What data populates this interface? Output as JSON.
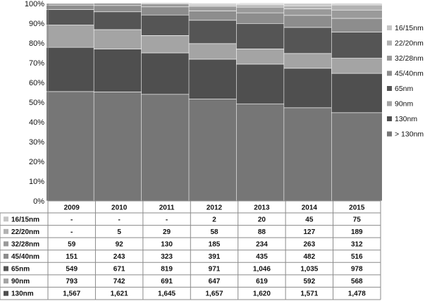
{
  "chart_data": {
    "type": "bar",
    "stacked": true,
    "percent_stacked": true,
    "categories": [
      "2009",
      "2010",
      "2011",
      "2012",
      "2013",
      "2014",
      "2015"
    ],
    "yticks": [
      "0%",
      "10%",
      "20%",
      "30%",
      "40%",
      "50%",
      "60%",
      "70%",
      "80%",
      "90%",
      "100%"
    ],
    "ylim": [
      0,
      100
    ],
    "legend_position": "right",
    "series": [
      {
        "name": "> 130nm",
        "color": "#767676",
        "values": [
          55.4,
          55.2,
          54.0,
          51.6,
          49.2,
          47.2,
          44.7
        ]
      },
      {
        "name": "130nm",
        "color": "#4f4f4f",
        "values": [
          22.4,
          21.7,
          21.0,
          20.2,
          20.1,
          20.0,
          19.9
        ]
      },
      {
        "name": "90nm",
        "color": "#a4a4a4",
        "values": [
          11.3,
          9.9,
          8.8,
          7.9,
          7.7,
          7.5,
          7.7
        ]
      },
      {
        "name": "65nm",
        "color": "#555555",
        "values": [
          7.9,
          9.0,
          10.4,
          11.8,
          12.9,
          13.2,
          13.2
        ]
      },
      {
        "name": "45/40nm",
        "color": "#8d8d8d",
        "values": [
          2.2,
          3.2,
          4.1,
          4.8,
          5.4,
          6.1,
          7.0
        ]
      },
      {
        "name": "32/28nm",
        "color": "#9a9a9a",
        "values": [
          0.8,
          1.2,
          1.6,
          2.3,
          2.9,
          3.3,
          4.2
        ]
      },
      {
        "name": "22/20nm",
        "color": "#b2b2b2",
        "values": [
          0,
          0.1,
          0.4,
          0.7,
          1.1,
          1.6,
          2.6
        ]
      },
      {
        "name": "16/15nm",
        "color": "#c6c6c6",
        "values": [
          0,
          0,
          0,
          0.7,
          0.6,
          1.1,
          0.7
        ]
      }
    ],
    "table": {
      "rows": [
        {
          "label": "16/15nm",
          "color": "#c6c6c6",
          "values": [
            "-",
            "-",
            "-",
            "2",
            "20",
            "45",
            "75"
          ]
        },
        {
          "label": "22/20nm",
          "color": "#b2b2b2",
          "values": [
            "-",
            "5",
            "29",
            "58",
            "88",
            "127",
            "189"
          ]
        },
        {
          "label": "32/28nm",
          "color": "#9a9a9a",
          "values": [
            "59",
            "92",
            "130",
            "185",
            "234",
            "263",
            "312"
          ]
        },
        {
          "label": "45/40nm",
          "color": "#8d8d8d",
          "values": [
            "151",
            "243",
            "323",
            "391",
            "435",
            "482",
            "516"
          ]
        },
        {
          "label": "65nm",
          "color": "#555555",
          "values": [
            "549",
            "671",
            "819",
            "971",
            "1,046",
            "1,035",
            "978"
          ]
        },
        {
          "label": "90nm",
          "color": "#a4a4a4",
          "values": [
            "793",
            "742",
            "691",
            "647",
            "619",
            "592",
            "568"
          ]
        },
        {
          "label": "130nm",
          "color": "#4f4f4f",
          "values": [
            "1,567",
            "1,621",
            "1,645",
            "1,657",
            "1,620",
            "1,571",
            "1,478"
          ]
        }
      ]
    }
  }
}
